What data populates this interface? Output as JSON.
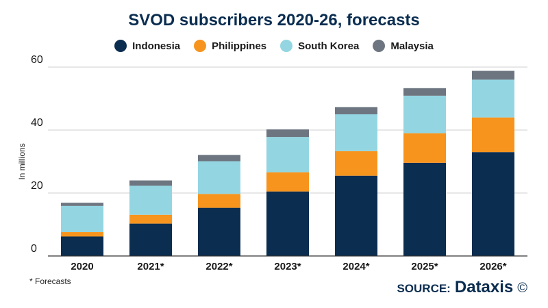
{
  "legend_colors": [
    "#0a2d50",
    "#f7941d",
    "#93d6e2",
    "#6d7680"
  ],
  "footnote": "* Forecasts",
  "source": {
    "label": "SOURCE:",
    "brand": "Dataxis",
    "symbol": "©"
  },
  "chart_data": {
    "type": "bar",
    "stacked": true,
    "title": "SVOD subscribers 2020-26, forecasts",
    "xlabel": "",
    "ylabel": "In millions",
    "ylim": [
      0,
      60
    ],
    "yticks": [
      0,
      20,
      40,
      60
    ],
    "grid": true,
    "legend_position": "top",
    "categories": [
      "2020",
      "2021*",
      "2022*",
      "2023*",
      "2024*",
      "2025*",
      "2026*"
    ],
    "series": [
      {
        "name": "Indonesia",
        "color": "#0a2d50",
        "values": [
          6.2,
          10.3,
          15.3,
          20.5,
          25.5,
          29.6,
          33.0
        ]
      },
      {
        "name": "Philippines",
        "color": "#f7941d",
        "values": [
          1.4,
          2.8,
          4.4,
          6.1,
          7.8,
          9.4,
          11.0
        ]
      },
      {
        "name": "South Korea",
        "color": "#93d6e2",
        "values": [
          8.3,
          9.2,
          10.4,
          11.2,
          11.7,
          11.9,
          12.0
        ]
      },
      {
        "name": "Malaysia",
        "color": "#6d7680",
        "values": [
          1.0,
          1.7,
          2.0,
          2.4,
          2.3,
          2.4,
          2.8
        ]
      }
    ]
  }
}
